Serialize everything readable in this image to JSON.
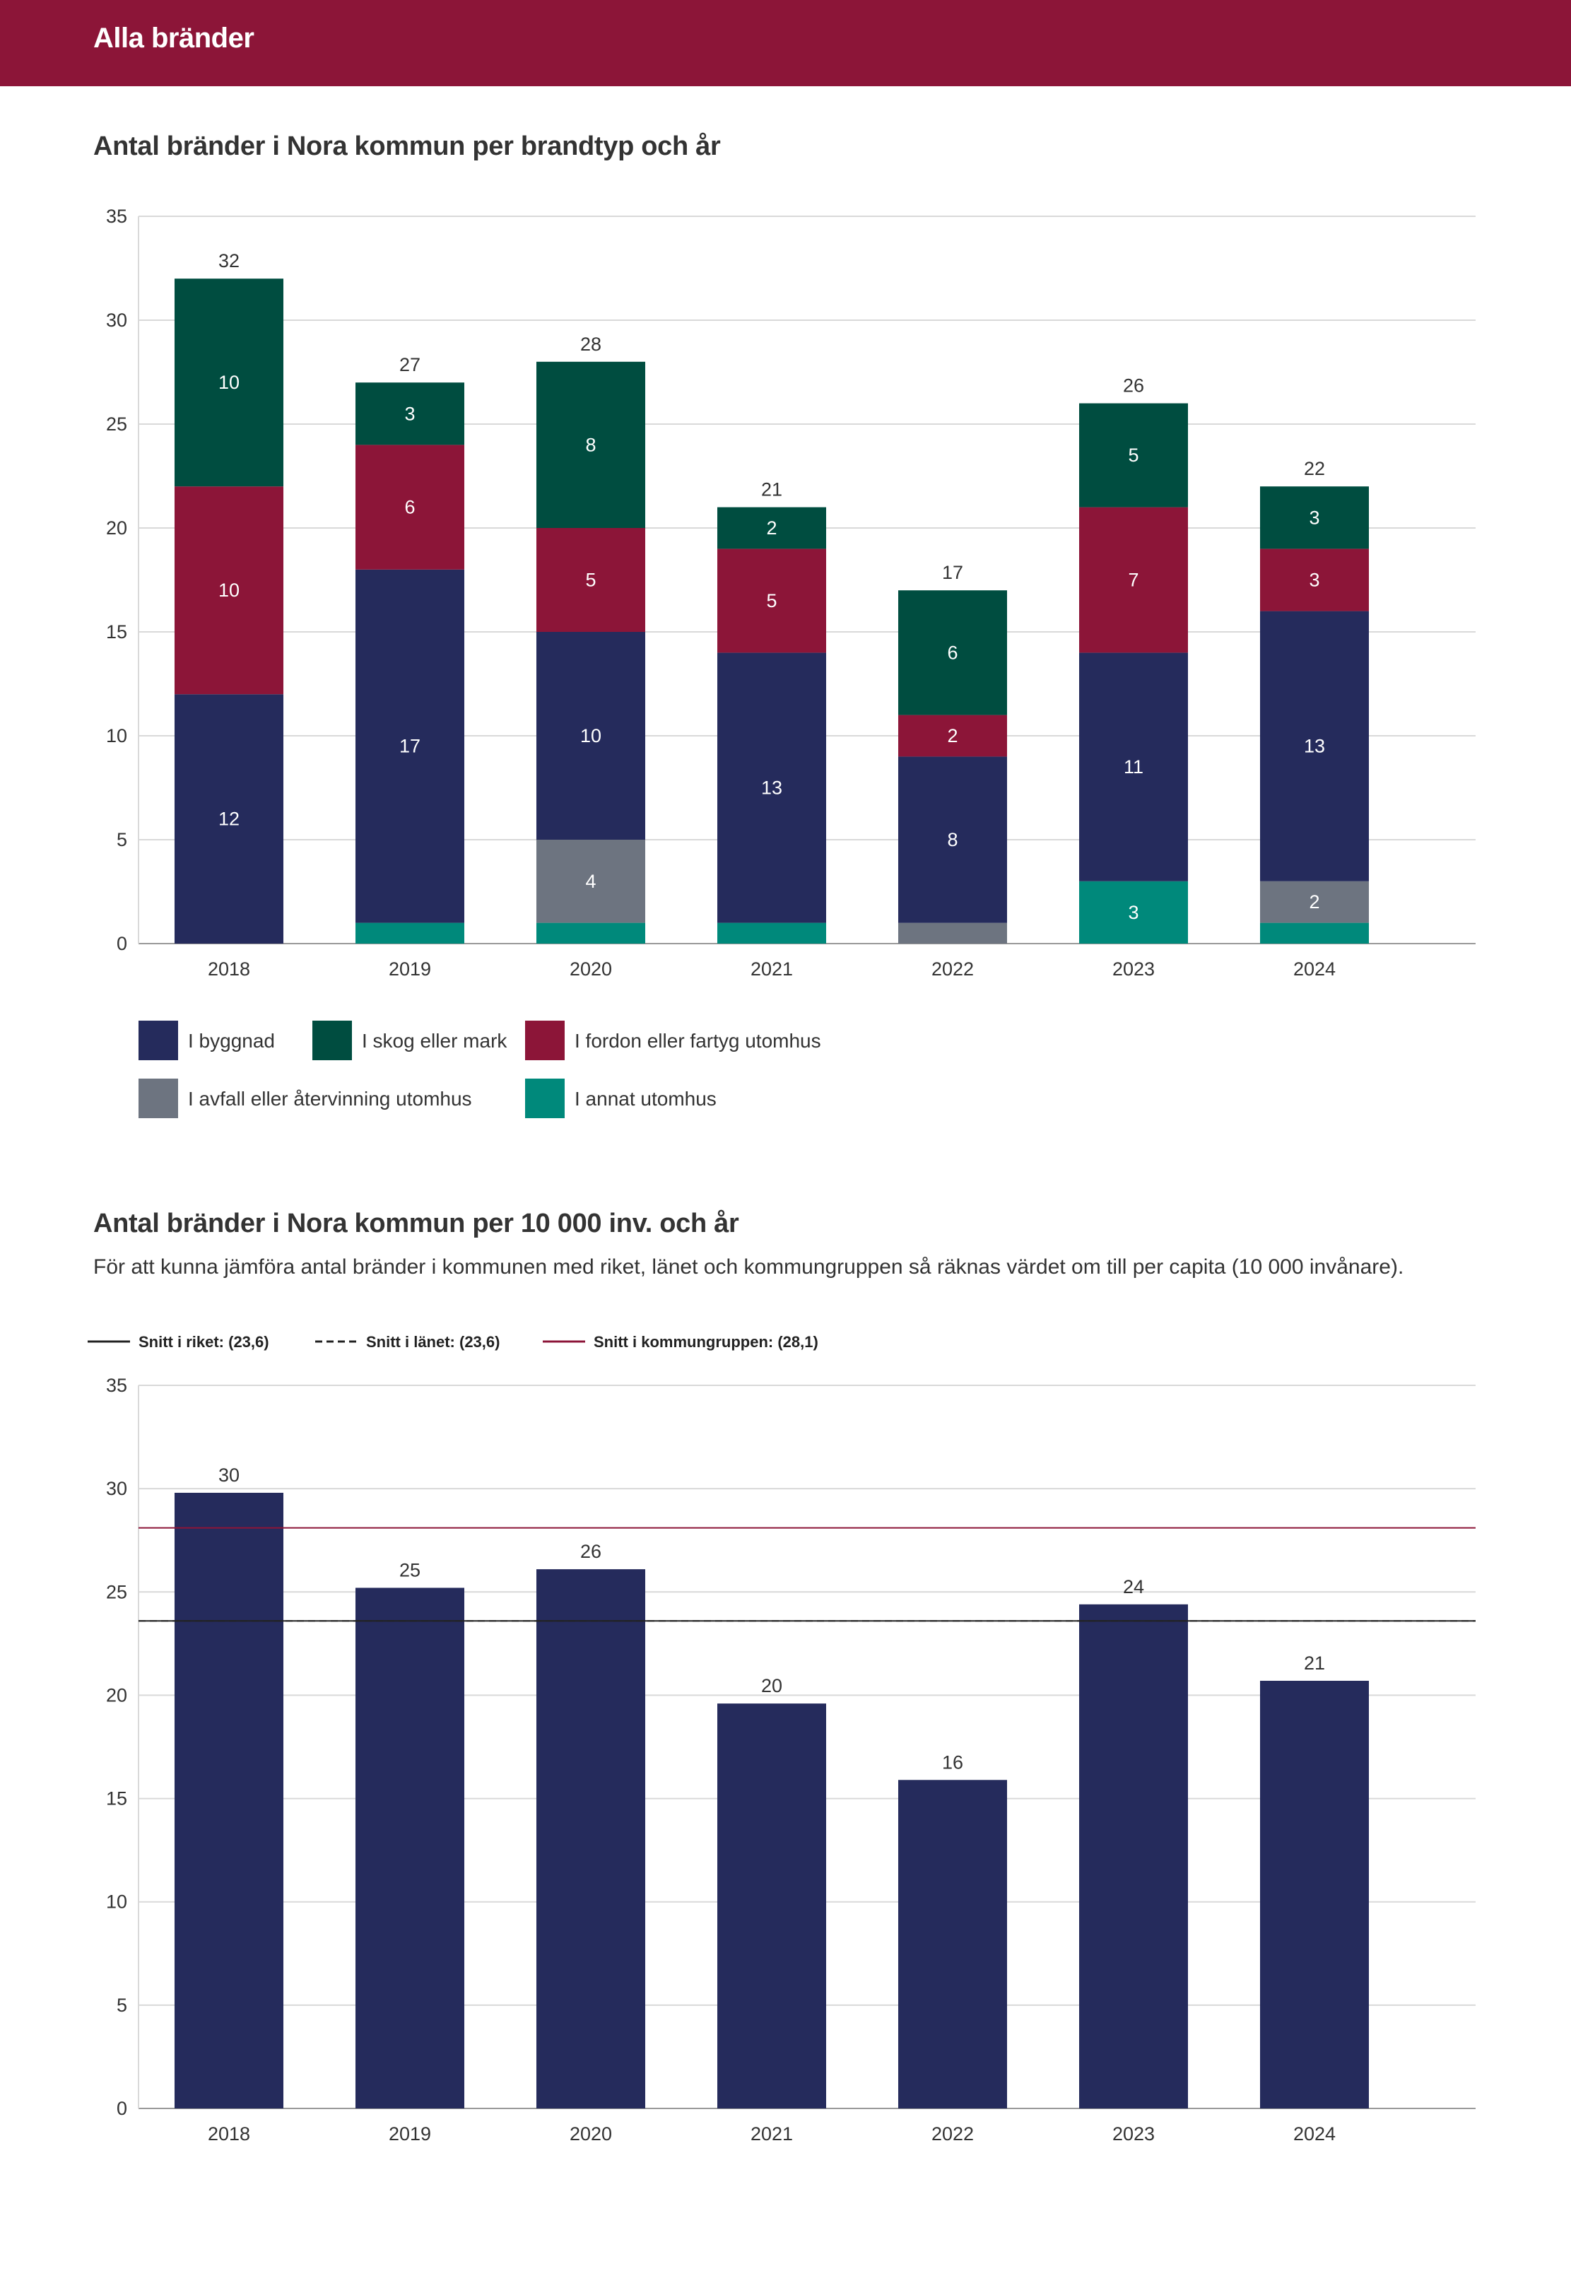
{
  "header": {
    "title": "Alla bränder"
  },
  "section1": {
    "title": "Antal bränder i Nora kommun per brandtyp och år"
  },
  "section2": {
    "title": "Antal bränder i Nora kommun per 10 000 inv. och år",
    "description": "För att kunna jämföra antal bränder i kommunen med riket, länet och kommungruppen så räknas värdet om till per capita (10 000 invånare)."
  },
  "colors": {
    "byggnad": "#252b5c",
    "skog": "#004d40",
    "fordon": "#8c1538",
    "avfall": "#6d7480",
    "annat": "#00897b",
    "grid": "#d9d9d9",
    "axis": "#999999",
    "riket": "#222222",
    "lanet": "#222222",
    "kommungrupp": "#8c1538"
  },
  "chart_data": [
    {
      "type": "bar",
      "stacked": true,
      "title": "Antal bränder i Nora kommun per brandtyp och år",
      "categories": [
        "2018",
        "2019",
        "2020",
        "2021",
        "2022",
        "2023",
        "2024"
      ],
      "series": [
        {
          "key": "annat",
          "name": "I annat utomhus",
          "values": [
            0,
            1,
            1,
            1,
            0,
            3,
            1
          ],
          "show_labels": [
            false,
            false,
            false,
            false,
            false,
            true,
            false
          ]
        },
        {
          "key": "avfall",
          "name": "I avfall eller återvinning utomhus",
          "values": [
            0,
            0,
            4,
            0,
            1,
            0,
            2
          ],
          "show_labels": [
            false,
            false,
            true,
            false,
            false,
            false,
            true
          ]
        },
        {
          "key": "byggnad",
          "name": "I byggnad",
          "values": [
            12,
            17,
            10,
            13,
            8,
            11,
            13
          ],
          "show_labels": [
            true,
            true,
            true,
            true,
            true,
            true,
            true
          ]
        },
        {
          "key": "fordon",
          "name": "I fordon eller fartyg utomhus",
          "values": [
            10,
            6,
            5,
            5,
            2,
            7,
            3
          ],
          "show_labels": [
            true,
            true,
            true,
            true,
            true,
            true,
            true
          ]
        },
        {
          "key": "skog",
          "name": "I skog eller mark",
          "values": [
            10,
            3,
            8,
            2,
            6,
            5,
            3
          ],
          "show_labels": [
            true,
            true,
            true,
            true,
            true,
            true,
            true
          ]
        }
      ],
      "totals": [
        "32",
        "27",
        "28",
        "21",
        "17",
        "26",
        "22"
      ],
      "yticks": [
        "0",
        "5",
        "10",
        "15",
        "20",
        "25",
        "30",
        "35"
      ],
      "ylim": [
        0,
        35
      ],
      "legend": [
        {
          "key": "byggnad",
          "label": "I byggnad"
        },
        {
          "key": "skog",
          "label": "I skog eller mark"
        },
        {
          "key": "fordon",
          "label": "I fordon eller fartyg utomhus"
        },
        {
          "key": "avfall",
          "label": "I avfall eller återvinning utomhus"
        },
        {
          "key": "annat",
          "label": "I annat utomhus"
        }
      ]
    },
    {
      "type": "bar",
      "title": "Antal bränder i Nora kommun per 10 000 inv. och år",
      "categories": [
        "2018",
        "2019",
        "2020",
        "2021",
        "2022",
        "2023",
        "2024"
      ],
      "values": [
        29.8,
        25.2,
        26.1,
        19.6,
        15.9,
        24.4,
        20.7
      ],
      "value_labels": [
        "30",
        "25",
        "26",
        "20",
        "16",
        "24",
        "21"
      ],
      "yticks": [
        "0",
        "5",
        "10",
        "15",
        "20",
        "25",
        "30",
        "35"
      ],
      "ylim": [
        0,
        35
      ],
      "reference_lines": [
        {
          "key": "riket",
          "label": "Snitt i riket: (23,6)",
          "value": 23.6,
          "style": "solid"
        },
        {
          "key": "lanet",
          "label": "Snitt i länet: (23,6)",
          "value": 23.6,
          "style": "dashed"
        },
        {
          "key": "kommungrupp",
          "label": "Snitt i kommungruppen: (28,1)",
          "value": 28.1,
          "style": "solid"
        }
      ]
    }
  ]
}
